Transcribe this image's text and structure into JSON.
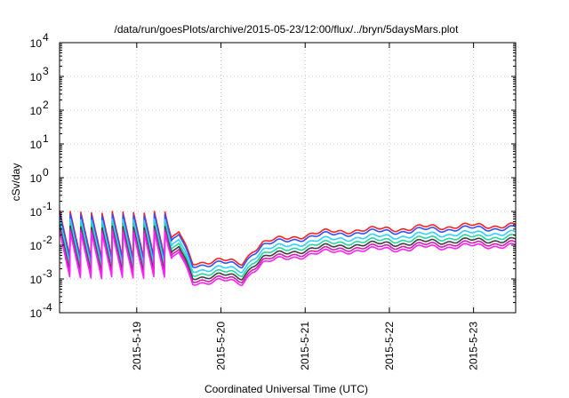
{
  "chart_data": {
    "type": "line",
    "title": "/data/run/goesPlots/archive/2015-05-23/12:00/flux/../bryn/5daysMars.plot",
    "xlabel": "Coordinated Universal Time (UTC)",
    "ylabel": "cSv/day",
    "yscale": "log",
    "ylim": [
      0.0001,
      10000
    ],
    "xlim": [
      "2015-05-18 02:00",
      "2015-05-23 12:00"
    ],
    "grid": true,
    "y_ticks": [
      {
        "value": 0.0001,
        "base": "10",
        "exp": "-4"
      },
      {
        "value": 0.001,
        "base": "10",
        "exp": "-3"
      },
      {
        "value": 0.01,
        "base": "10",
        "exp": "-2"
      },
      {
        "value": 0.1,
        "base": "10",
        "exp": "-1"
      },
      {
        "value": 1,
        "base": "10",
        "exp": "0"
      },
      {
        "value": 10,
        "base": "10",
        "exp": "1"
      },
      {
        "value": 100,
        "base": "10",
        "exp": "2"
      },
      {
        "value": 1000,
        "base": "10",
        "exp": "3"
      },
      {
        "value": 10000,
        "base": "10",
        "exp": "4"
      }
    ],
    "x_ticks": [
      "2015-5-19",
      "2015-5-20",
      "2015-5-21",
      "2015-5-22",
      "2015-5-23"
    ],
    "x_tick_dates": [
      "2015-05-19 00:00",
      "2015-05-20 00:00",
      "2015-05-21 00:00",
      "2015-05-22 00:00",
      "2015-05-23 00:00"
    ],
    "x_tick_labels": [
      "2015-5-19",
      "2015-5-20",
      "2015-5-21",
      "2015-5-22",
      "2015-5-23"
    ],
    "series": [
      {
        "color": "#ff2020",
        "scale": 1.2
      },
      {
        "color": "#3050ff",
        "scale": 1.0
      },
      {
        "color": "#30d0ff",
        "scale": 0.72
      },
      {
        "color": "#20d8a0",
        "scale": 0.55
      },
      {
        "color": "#404040",
        "scale": 0.44
      },
      {
        "color": "#d020b0",
        "scale": 0.36
      },
      {
        "color": "#ff20ff",
        "scale": 0.3
      }
    ],
    "base_curve": {
      "x": [
        "2015-05-18 02:00",
        "2015-05-18 06:00",
        "2015-05-18 09:00",
        "2015-05-18 12:00",
        "2015-05-18 15:00",
        "2015-05-18 18:00",
        "2015-05-18 21:00",
        "2015-05-19 00:00",
        "2015-05-19 03:00",
        "2015-05-19 06:00",
        "2015-05-19 09:00",
        "2015-05-19 12:00",
        "2015-05-19 16:00",
        "2015-05-19 20:00",
        "2015-05-20 00:00",
        "2015-05-20 04:00",
        "2015-05-20 06:00",
        "2015-05-20 09:00",
        "2015-05-20 12:00",
        "2015-05-20 18:00",
        "2015-05-21 00:00",
        "2015-05-21 06:00",
        "2015-05-21 12:00",
        "2015-05-21 18:00",
        "2015-05-22 00:00",
        "2015-05-22 06:00",
        "2015-05-22 12:00",
        "2015-05-22 18:00",
        "2015-05-23 00:00",
        "2015-05-23 06:00",
        "2015-05-23 12:00"
      ],
      "y": [
        0.01,
        0.0095,
        0.0095,
        0.0095,
        0.0095,
        0.0095,
        0.0095,
        0.0095,
        0.0095,
        0.0095,
        0.0095,
        0.02,
        0.0025,
        0.0028,
        0.003,
        0.0025,
        0.0024,
        0.006,
        0.01,
        0.013,
        0.017,
        0.02,
        0.023,
        0.023,
        0.027,
        0.025,
        0.03,
        0.03,
        0.031,
        0.032,
        0.032
      ]
    }
  }
}
